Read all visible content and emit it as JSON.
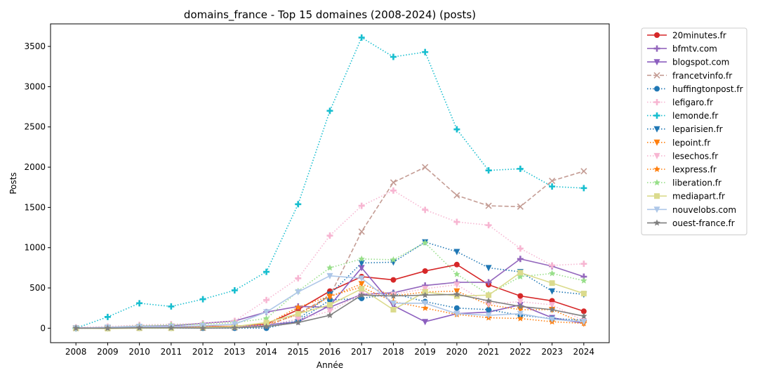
{
  "chart_data": {
    "type": "line",
    "title": "domains_france - Top 15 domaines (2008-2024) (posts)",
    "xlabel": "Année",
    "ylabel": "Posts",
    "xlim": [
      2007.2,
      2024.8
    ],
    "ylim": [
      -180,
      3780
    ],
    "x_ticks": [
      2008,
      2009,
      2010,
      2011,
      2012,
      2013,
      2014,
      2015,
      2016,
      2017,
      2018,
      2019,
      2020,
      2021,
      2022,
      2023,
      2024
    ],
    "y_ticks": [
      0,
      500,
      1000,
      1500,
      2000,
      2500,
      3000,
      3500
    ],
    "grid": false,
    "legend_position": "outside-right",
    "x": [
      2008,
      2009,
      2010,
      2011,
      2012,
      2013,
      2014,
      2015,
      2016,
      2017,
      2018,
      2019,
      2020,
      2021,
      2022,
      2023,
      2024
    ],
    "series": [
      {
        "name": "20minutes.fr",
        "color": "#d62728",
        "dash": "solid",
        "marker": "circle",
        "values": [
          0,
          5,
          15,
          20,
          20,
          25,
          50,
          230,
          460,
          640,
          600,
          710,
          790,
          540,
          400,
          340,
          210
        ]
      },
      {
        "name": "bfmtv.com",
        "color": "#9467bd",
        "dash": "solid",
        "marker": "plus",
        "values": [
          0,
          10,
          25,
          30,
          60,
          90,
          200,
          270,
          260,
          420,
          440,
          530,
          570,
          570,
          860,
          770,
          640
        ]
      },
      {
        "name": "blogspot.com",
        "color": "#8c5fbf",
        "dash": "solid",
        "marker": "tri-down",
        "values": [
          0,
          5,
          10,
          10,
          10,
          20,
          40,
          80,
          280,
          750,
          280,
          80,
          180,
          200,
          290,
          130,
          60
        ]
      },
      {
        "name": "francetvinfo.fr",
        "color": "#c49c94",
        "dash": "dashed",
        "marker": "x",
        "values": [
          0,
          5,
          5,
          5,
          5,
          10,
          30,
          180,
          400,
          1200,
          1810,
          2000,
          1650,
          1520,
          1510,
          1830,
          1950
        ]
      },
      {
        "name": "huffingtonpost.fr",
        "color": "#1f77b4",
        "dash": "dotted",
        "marker": "circle",
        "values": [
          0,
          0,
          0,
          0,
          0,
          0,
          0,
          90,
          350,
          370,
          430,
          330,
          250,
          230,
          160,
          120,
          100
        ]
      },
      {
        "name": "lefigaro.fr",
        "color": "#f7b6d2",
        "dash": "dotted",
        "marker": "plus",
        "values": [
          10,
          20,
          40,
          50,
          60,
          90,
          350,
          620,
          1150,
          1520,
          1710,
          1470,
          1320,
          1280,
          990,
          780,
          800
        ]
      },
      {
        "name": "lemonde.fr",
        "color": "#17becf",
        "dash": "dotted",
        "marker": "plus",
        "values": [
          0,
          140,
          310,
          270,
          360,
          470,
          700,
          1540,
          2700,
          3610,
          3370,
          3430,
          2470,
          1960,
          1980,
          1760,
          1740
        ]
      },
      {
        "name": "leparisien.fr",
        "color": "#1f77b4",
        "dash": "dotted",
        "marker": "tri-down",
        "values": [
          0,
          0,
          10,
          10,
          10,
          15,
          30,
          110,
          420,
          810,
          820,
          1070,
          950,
          750,
          700,
          460,
          420
        ]
      },
      {
        "name": "lepoint.fr",
        "color": "#ff7f0e",
        "dash": "dotted",
        "marker": "tri-down",
        "values": [
          0,
          5,
          10,
          10,
          15,
          20,
          40,
          170,
          390,
          550,
          400,
          450,
          460,
          290,
          230,
          230,
          60
        ]
      },
      {
        "name": "lesechos.fr",
        "color": "#f7b6d2",
        "dash": "dotted",
        "marker": "tri-down",
        "values": [
          0,
          5,
          10,
          10,
          15,
          20,
          40,
          110,
          210,
          430,
          420,
          490,
          540,
          300,
          330,
          290,
          90
        ]
      },
      {
        "name": "lexpress.fr",
        "color": "#ff7f0e",
        "dash": "dotted",
        "marker": "star",
        "values": [
          0,
          5,
          10,
          10,
          15,
          25,
          50,
          260,
          400,
          510,
          330,
          250,
          170,
          130,
          120,
          80,
          60
        ]
      },
      {
        "name": "liberation.fr",
        "color": "#98df8a",
        "dash": "dotted",
        "marker": "star",
        "values": [
          0,
          10,
          30,
          40,
          50,
          70,
          120,
          460,
          750,
          860,
          850,
          1060,
          670,
          420,
          640,
          680,
          590
        ]
      },
      {
        "name": "mediapart.fr",
        "color": "#dbdb8d",
        "dash": "solid",
        "marker": "square",
        "values": [
          0,
          -5,
          0,
          0,
          10,
          20,
          70,
          180,
          290,
          490,
          230,
          450,
          400,
          410,
          690,
          560,
          430
        ]
      },
      {
        "name": "nouvelobs.com",
        "color": "#aec7e8",
        "dash": "solid",
        "marker": "tri-down",
        "values": [
          0,
          10,
          20,
          20,
          30,
          50,
          200,
          450,
          650,
          620,
          310,
          310,
          180,
          160,
          180,
          110,
          80
        ]
      },
      {
        "name": "ouest-france.fr",
        "color": "#7f7f7f",
        "dash": "solid",
        "marker": "star",
        "values": [
          0,
          0,
          5,
          5,
          0,
          5,
          20,
          70,
          160,
          410,
          400,
          410,
          420,
          340,
          270,
          230,
          150
        ]
      }
    ]
  }
}
